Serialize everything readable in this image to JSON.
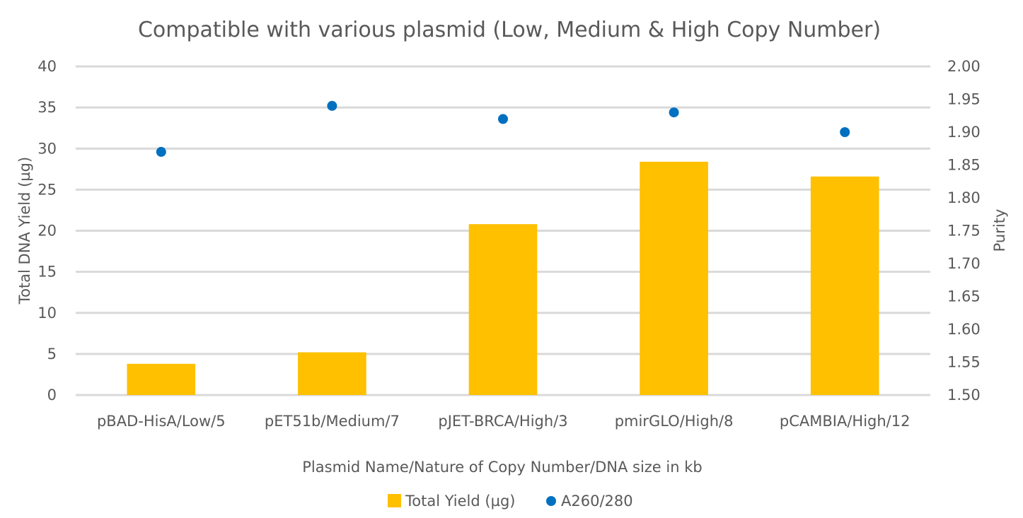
{
  "chart_data": {
    "type": "bar",
    "title": "Compatible with various plasmid (Low, Medium & High Copy Number)",
    "xlabel": "Plasmid Name/Nature of Copy Number/DNA size in kb",
    "ylabel": "Total DNA Yield (µg)",
    "y2label": "Purity",
    "categories": [
      "pBAD-HisA/Low/5",
      "pET51b/Medium/7",
      "pJET-BRCA/High/3",
      "pmirGLO/High/8",
      "pCAMBIA/High/12"
    ],
    "ylim": [
      0,
      40
    ],
    "yticks": [
      "0",
      "5",
      "10",
      "15",
      "20",
      "25",
      "30",
      "35",
      "40"
    ],
    "y2lim": [
      1.5,
      2.0
    ],
    "y2ticks": [
      "1.50",
      "1.55",
      "1.60",
      "1.65",
      "1.70",
      "1.75",
      "1.80",
      "1.85",
      "1.90",
      "1.95",
      "2.00"
    ],
    "grid": true,
    "legend_position": "bottom",
    "series": [
      {
        "name": "Total Yield (µg)",
        "kind": "bar",
        "axis": "left",
        "color": "#FFC000",
        "values": [
          3.8,
          5.2,
          20.8,
          28.4,
          26.6
        ]
      },
      {
        "name": "A260/280",
        "kind": "scatter",
        "axis": "right",
        "color": "#0070C0",
        "values": [
          1.87,
          1.94,
          1.92,
          1.93,
          1.9
        ]
      }
    ]
  }
}
